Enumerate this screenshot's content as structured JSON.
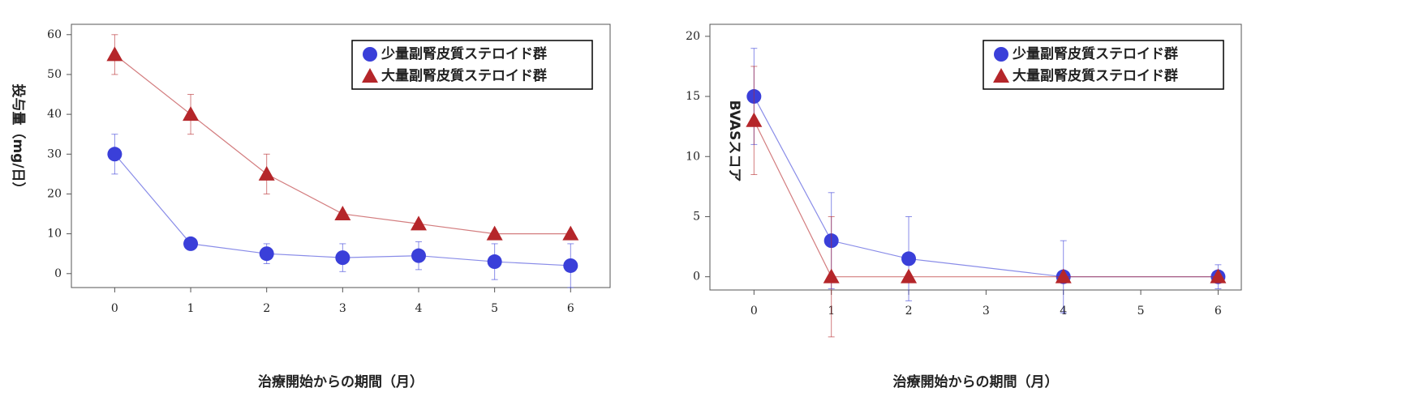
{
  "chart_data": [
    {
      "type": "line",
      "x_label": "治療開始からの期間（月）",
      "y_label": "投与量（mg/日）",
      "xlim": [
        -0.57,
        6.52
      ],
      "ylim": [
        -3.5,
        62.6
      ],
      "xticks": [
        0,
        1,
        2,
        3,
        4,
        5,
        6
      ],
      "yticks": [
        0,
        10,
        20,
        30,
        40,
        50,
        60
      ],
      "legend": "upper right",
      "series": [
        {
          "name": "少量副腎皮質ステロイド群",
          "color": "#3a3fd9",
          "marker": "circle",
          "x": [
            0,
            1,
            2,
            3,
            4,
            5,
            6
          ],
          "values": [
            30,
            7.5,
            5,
            4,
            4.5,
            3,
            2
          ],
          "errors": [
            5,
            0.5,
            2.5,
            3.5,
            3.5,
            4.5,
            5.5
          ]
        },
        {
          "name": "大量副腎皮質ステロイド群",
          "color": "#b5262a",
          "marker": "triangle",
          "x": [
            0,
            1,
            2,
            3,
            4,
            5,
            6
          ],
          "values": [
            55,
            40,
            25,
            15,
            12.5,
            10,
            10
          ],
          "errors": [
            5,
            5,
            5,
            0.5,
            0.5,
            0.5,
            0.5
          ]
        }
      ]
    },
    {
      "type": "line",
      "x_label": "治療開始からの期間（月）",
      "y_label": "BVASスコア",
      "xlim": [
        -0.57,
        6.3
      ],
      "ylim": [
        -1.1,
        21
      ],
      "xticks": [
        0,
        1,
        2,
        3,
        4,
        5,
        6
      ],
      "yticks": [
        0,
        5,
        10,
        15,
        20
      ],
      "legend": "upper right",
      "series": [
        {
          "name": "少量副腎皮質ステロイド群",
          "color": "#3a3fd9",
          "marker": "circle",
          "x": [
            0,
            1,
            2,
            4,
            6
          ],
          "values": [
            15,
            3,
            1.5,
            0,
            0
          ],
          "errors": [
            4,
            4,
            3.5,
            3,
            1
          ]
        },
        {
          "name": "大量副腎皮質ステロイド群",
          "color": "#b5262a",
          "marker": "triangle",
          "x": [
            0,
            1,
            2,
            4,
            6
          ],
          "values": [
            13,
            0,
            0,
            0,
            0
          ],
          "errors": [
            4.5,
            5,
            0,
            0,
            0
          ]
        }
      ]
    }
  ]
}
